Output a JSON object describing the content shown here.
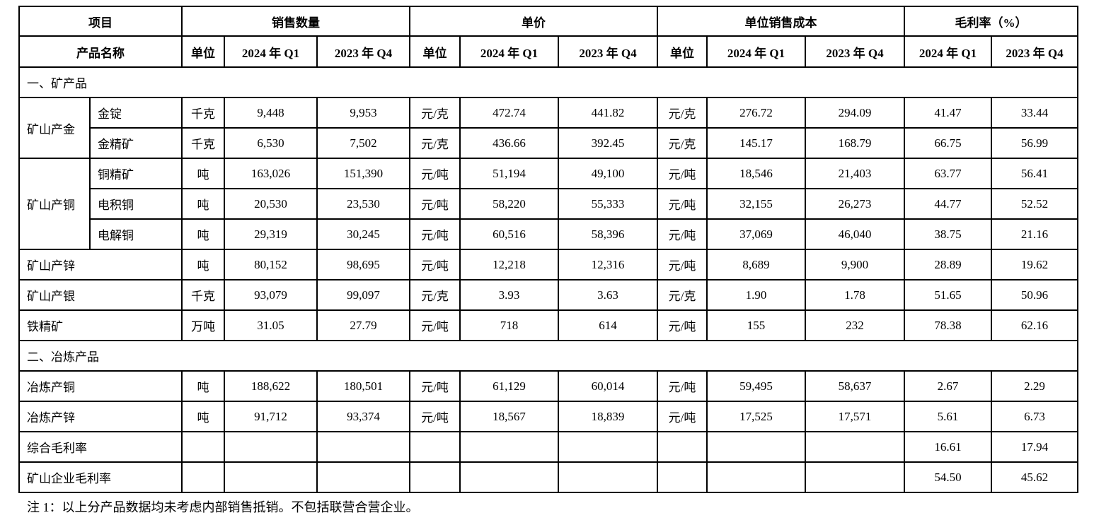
{
  "header": {
    "item": "项目",
    "product_name": "产品名称",
    "groups": [
      "销售数量",
      "单价",
      "单位销售成本",
      "毛利率（%）"
    ],
    "unit": "单位",
    "periods": [
      "2024 年 Q1",
      "2023 年 Q4"
    ]
  },
  "rows": [
    {
      "type": "section",
      "label": "一、矿产品"
    },
    {
      "type": "product",
      "group": "矿山产金",
      "name": "金锭",
      "unit": "千克",
      "qty": [
        "9,448",
        "9,953"
      ],
      "price_unit": "元/克",
      "price": [
        "472.74",
        "441.82"
      ],
      "cost_unit": "元/克",
      "cost": [
        "276.72",
        "294.09"
      ],
      "margin": [
        "41.47",
        "33.44"
      ]
    },
    {
      "type": "product",
      "group": "矿山产金",
      "name": "金精矿",
      "unit": "千克",
      "qty": [
        "6,530",
        "7,502"
      ],
      "price_unit": "元/克",
      "price": [
        "436.66",
        "392.45"
      ],
      "cost_unit": "元/克",
      "cost": [
        "145.17",
        "168.79"
      ],
      "margin": [
        "66.75",
        "56.99"
      ]
    },
    {
      "type": "product",
      "group": "矿山产铜",
      "name": "铜精矿",
      "unit": "吨",
      "qty": [
        "163,026",
        "151,390"
      ],
      "price_unit": "元/吨",
      "price": [
        "51,194",
        "49,100"
      ],
      "cost_unit": "元/吨",
      "cost": [
        "18,546",
        "21,403"
      ],
      "margin": [
        "63.77",
        "56.41"
      ]
    },
    {
      "type": "product",
      "group": "矿山产铜",
      "name": "电积铜",
      "unit": "吨",
      "qty": [
        "20,530",
        "23,530"
      ],
      "price_unit": "元/吨",
      "price": [
        "58,220",
        "55,333"
      ],
      "cost_unit": "元/吨",
      "cost": [
        "32,155",
        "26,273"
      ],
      "margin": [
        "44.77",
        "52.52"
      ]
    },
    {
      "type": "product",
      "group": "矿山产铜",
      "name": "电解铜",
      "unit": "吨",
      "qty": [
        "29,319",
        "30,245"
      ],
      "price_unit": "元/吨",
      "price": [
        "60,516",
        "58,396"
      ],
      "cost_unit": "元/吨",
      "cost": [
        "37,069",
        "46,040"
      ],
      "margin": [
        "38.75",
        "21.16"
      ]
    },
    {
      "type": "product",
      "name": "矿山产锌",
      "unit": "吨",
      "qty": [
        "80,152",
        "98,695"
      ],
      "price_unit": "元/吨",
      "price": [
        "12,218",
        "12,316"
      ],
      "cost_unit": "元/吨",
      "cost": [
        "8,689",
        "9,900"
      ],
      "margin": [
        "28.89",
        "19.62"
      ]
    },
    {
      "type": "product",
      "name": "矿山产银",
      "unit": "千克",
      "qty": [
        "93,079",
        "99,097"
      ],
      "price_unit": "元/克",
      "price": [
        "3.93",
        "3.63"
      ],
      "cost_unit": "元/克",
      "cost": [
        "1.90",
        "1.78"
      ],
      "margin": [
        "51.65",
        "50.96"
      ]
    },
    {
      "type": "product",
      "name": "铁精矿",
      "unit": "万吨",
      "qty": [
        "31.05",
        "27.79"
      ],
      "price_unit": "元/吨",
      "price": [
        "718",
        "614"
      ],
      "cost_unit": "元/吨",
      "cost": [
        "155",
        "232"
      ],
      "margin": [
        "78.38",
        "62.16"
      ]
    },
    {
      "type": "section",
      "label": "二、冶炼产品"
    },
    {
      "type": "product",
      "name": "冶炼产铜",
      "unit": "吨",
      "qty": [
        "188,622",
        "180,501"
      ],
      "price_unit": "元/吨",
      "price": [
        "61,129",
        "60,014"
      ],
      "cost_unit": "元/吨",
      "cost": [
        "59,495",
        "58,637"
      ],
      "margin": [
        "2.67",
        "2.29"
      ]
    },
    {
      "type": "product",
      "name": "冶炼产锌",
      "unit": "吨",
      "qty": [
        "91,712",
        "93,374"
      ],
      "price_unit": "元/吨",
      "price": [
        "18,567",
        "18,839"
      ],
      "cost_unit": "元/吨",
      "cost": [
        "17,525",
        "17,571"
      ],
      "margin": [
        "5.61",
        "6.73"
      ]
    },
    {
      "type": "product",
      "name": "综合毛利率",
      "unit": "",
      "qty": [
        "",
        ""
      ],
      "price_unit": "",
      "price": [
        "",
        ""
      ],
      "cost_unit": "",
      "cost": [
        "",
        ""
      ],
      "margin": [
        "16.61",
        "17.94"
      ]
    },
    {
      "type": "product",
      "name": "矿山企业毛利率",
      "unit": "",
      "qty": [
        "",
        ""
      ],
      "price_unit": "",
      "price": [
        "",
        ""
      ],
      "cost_unit": "",
      "cost": [
        "",
        ""
      ],
      "margin": [
        "54.50",
        "45.62"
      ]
    }
  ],
  "note": "注 1：以上分产品数据均未考虑内部销售抵销。不包括联营合营企业。"
}
